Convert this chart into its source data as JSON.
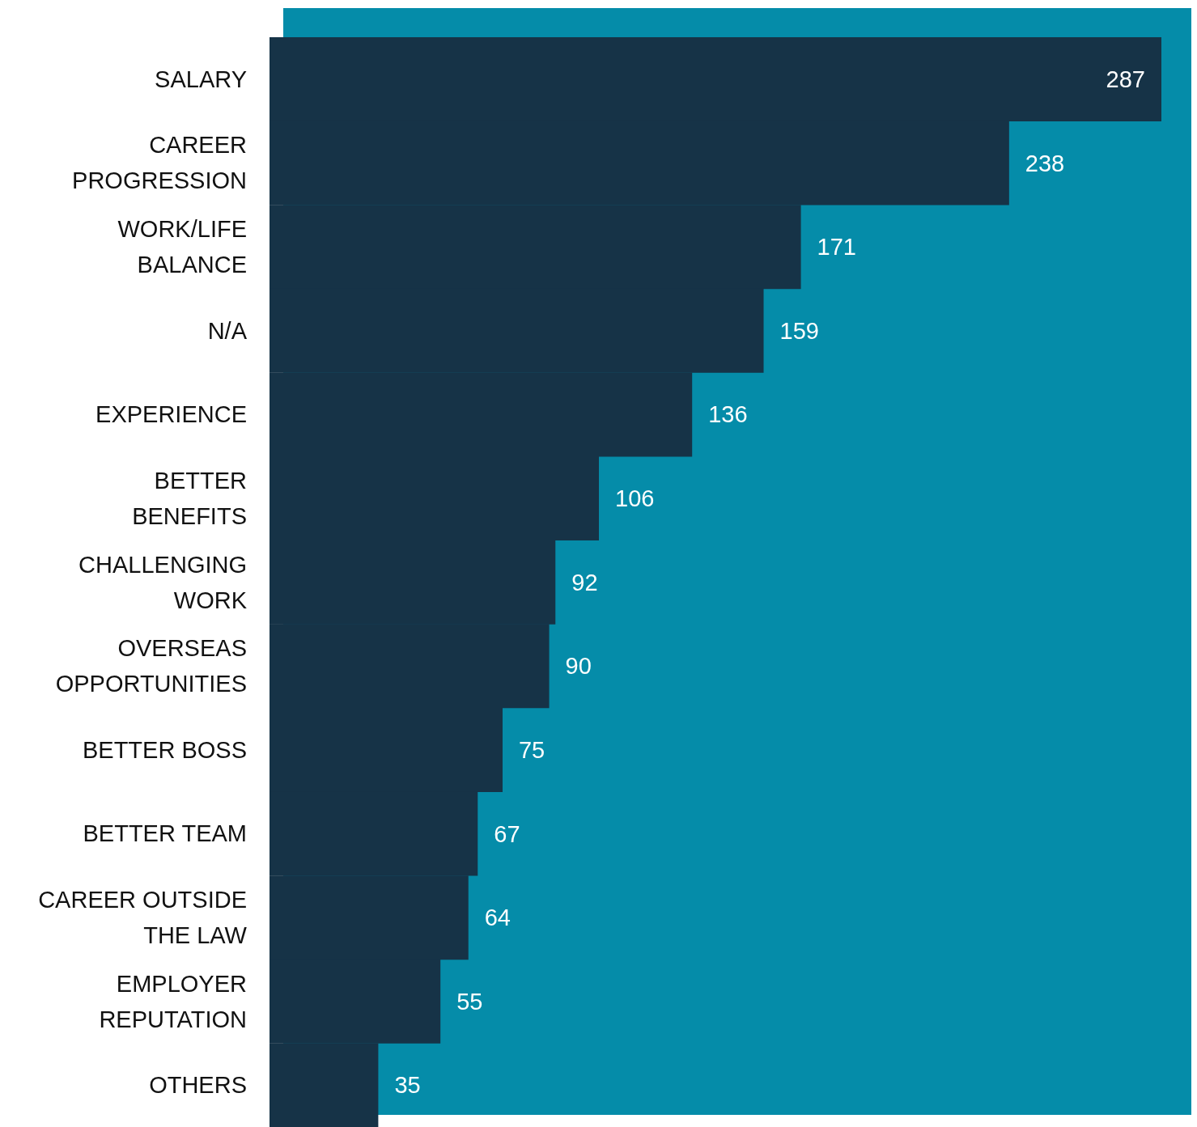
{
  "chart_data": {
    "type": "bar",
    "orientation": "horizontal",
    "categories": [
      "SALARY",
      "CAREER PROGRESSION",
      "WORK/LIFE BALANCE",
      "N/A",
      "EXPERIENCE",
      "BETTER BENEFITS",
      "CHALLENGING WORK",
      "OVERSEAS OPPORTUNITIES",
      "BETTER BOSS",
      "BETTER TEAM",
      "CAREER OUTSIDE THE LAW",
      "EMPLOYER REPUTATION",
      "OTHERS"
    ],
    "values": [
      287,
      238,
      171,
      159,
      136,
      106,
      92,
      90,
      75,
      67,
      64,
      55,
      35
    ],
    "color": "#163347",
    "data_labels": true
  }
}
